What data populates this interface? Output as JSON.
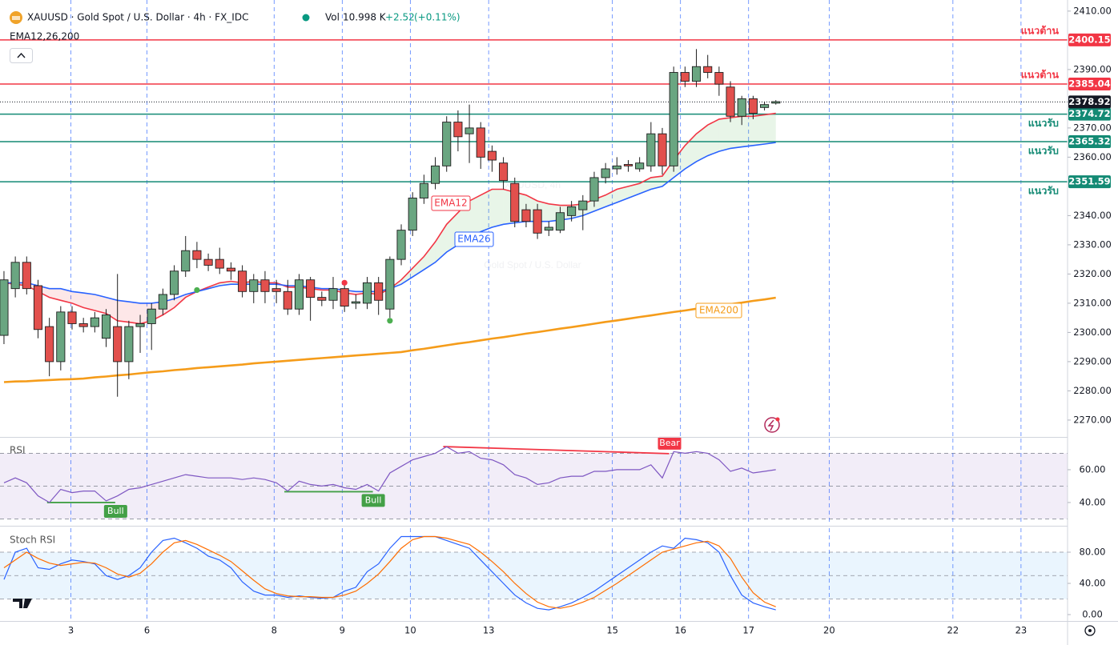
{
  "header": {
    "symbol": "XAUUSD · Gold Spot / U.S. Dollar · 4h · FX_IDC",
    "vol_label": "Vol",
    "vol": "10.998 K",
    "change": "+2.52",
    "change_pct": "(+0.11%)",
    "indicator": "EMA12,26,200"
  },
  "chart_data": [
    {
      "type": "candlestick",
      "watermark": [
        "XAUUSD, 4h",
        "Gold Spot / U.S. Dollar"
      ],
      "colors": {
        "up": "#6aa681",
        "down": "#e2504d"
      },
      "open": [
        2299,
        2315,
        2324,
        2316,
        2302,
        2290,
        2307,
        2303,
        2302,
        2298,
        2302,
        2290,
        2302,
        2303,
        2308,
        2313,
        2321,
        2328,
        2325,
        2325,
        2322,
        2321,
        2314,
        2318,
        2315,
        2314,
        2308,
        2318,
        2312,
        2311,
        2315,
        2310,
        2310,
        2317,
        2308,
        2325,
        2335,
        2346,
        2351,
        2357,
        2372,
        2368,
        2370,
        2362,
        2358,
        2351,
        2342,
        2342,
        2335,
        2335,
        2340,
        2342,
        2345,
        2353,
        2356,
        2357.5,
        2356,
        2357,
        2368,
        2357,
        2389,
        2386,
        2391,
        2389,
        2384,
        2374,
        2380,
        2377,
        2378.5
      ],
      "high": [
        2321,
        2326,
        2326,
        2318,
        2305,
        2309,
        2309,
        2305,
        2307,
        2308,
        2320,
        2304,
        2306,
        2310,
        2315,
        2323,
        2333,
        2331,
        2327,
        2329,
        2324,
        2323,
        2320,
        2321,
        2318,
        2318,
        2320,
        2319,
        2314,
        2319,
        2317,
        2313,
        2319,
        2319,
        2326,
        2337,
        2348,
        2354,
        2360,
        2374,
        2376,
        2378,
        2372,
        2364,
        2360,
        2353,
        2344,
        2344,
        2338,
        2343,
        2345,
        2347,
        2355,
        2358,
        2360,
        2359,
        2360,
        2372,
        2370,
        2391,
        2391,
        2397,
        2395,
        2391,
        2386,
        2381,
        2381,
        2379,
        2379.5
      ],
      "low": [
        2296,
        2312,
        2313,
        2298,
        2285,
        2287,
        2301,
        2300,
        2300,
        2295,
        2278,
        2284,
        2293,
        2294,
        2306,
        2311,
        2319,
        2322,
        2321,
        2320,
        2318,
        2312,
        2310,
        2310,
        2310,
        2306,
        2306,
        2304,
        2309,
        2308,
        2307,
        2308,
        2308,
        2306,
        2305,
        2323,
        2333,
        2344,
        2349,
        2355,
        2362,
        2358,
        2356,
        2355,
        2349,
        2336,
        2336,
        2332,
        2333,
        2334,
        2338,
        2335,
        2343,
        2351,
        2354,
        2355,
        2355,
        2355,
        2354,
        2355,
        2384,
        2384,
        2387,
        2381,
        2372,
        2371,
        2373,
        2376,
        2378
      ],
      "close": [
        2318,
        2324,
        2315,
        2301,
        2290,
        2307,
        2303,
        2302,
        2305,
        2306,
        2290,
        2302,
        2303,
        2308,
        2313,
        2321,
        2328,
        2325,
        2323,
        2322,
        2321,
        2314,
        2318,
        2314,
        2314,
        2308,
        2318,
        2312,
        2311,
        2315,
        2309,
        2310.5,
        2317,
        2311,
        2325,
        2335,
        2346,
        2351,
        2357,
        2372,
        2367,
        2370,
        2360,
        2359,
        2352,
        2338,
        2338,
        2334,
        2336,
        2341,
        2343,
        2345,
        2353,
        2356,
        2357,
        2357,
        2358,
        2368,
        2357,
        2389,
        2386,
        2391,
        2389,
        2385,
        2374,
        2380,
        2375,
        2378,
        2379
      ],
      "series": [
        {
          "name": "EMA12",
          "color": "#f23645",
          "values": [
            2317,
            2316.5,
            2316,
            2314,
            2312,
            2311,
            2310,
            2308.5,
            2307.5,
            2306.5,
            2304,
            2303.5,
            2303,
            2304,
            2306,
            2308.5,
            2312,
            2314,
            2315.5,
            2317,
            2317.5,
            2317,
            2317.5,
            2317,
            2317,
            2315.5,
            2315.5,
            2315,
            2314.5,
            2314.5,
            2313.5,
            2313,
            2313.5,
            2313,
            2315,
            2318,
            2322,
            2326,
            2331,
            2337,
            2341,
            2345,
            2347,
            2349,
            2349,
            2348,
            2347,
            2345,
            2344,
            2343.5,
            2343.5,
            2344,
            2345.5,
            2347,
            2349,
            2350,
            2351,
            2353,
            2353.5,
            2359,
            2364,
            2368,
            2371,
            2373,
            2373.5,
            2374,
            2374,
            2374.5,
            2375
          ]
        },
        {
          "name": "EMA26",
          "color": "#2962ff",
          "values": [
            2317,
            2317,
            2317,
            2316,
            2315,
            2315,
            2314,
            2313.5,
            2313,
            2312,
            2311,
            2310.5,
            2310,
            2310,
            2310.5,
            2311.5,
            2313,
            2314,
            2315,
            2316,
            2316.5,
            2316.5,
            2316.5,
            2316.5,
            2316.5,
            2316,
            2316,
            2315.5,
            2315,
            2315,
            2314.5,
            2314,
            2314,
            2314,
            2315,
            2316.5,
            2319,
            2321.5,
            2324,
            2327.5,
            2330,
            2332.5,
            2334.5,
            2336,
            2337,
            2337.5,
            2338,
            2338,
            2338,
            2338.5,
            2339,
            2340,
            2341.5,
            2343,
            2344.5,
            2346,
            2347.5,
            2349,
            2350,
            2353,
            2356,
            2358.5,
            2360.5,
            2362,
            2363,
            2363.5,
            2364,
            2364.5,
            2365
          ]
        },
        {
          "name": "EMA200",
          "color": "#f59c1a",
          "values": [
            2283,
            2283.2,
            2283.3,
            2283.5,
            2283.7,
            2283.9,
            2284,
            2284.2,
            2284.6,
            2284.9,
            2285.3,
            2285.6,
            2286,
            2286.4,
            2286.7,
            2287.1,
            2287.4,
            2287.8,
            2288.1,
            2288.4,
            2288.7,
            2289,
            2289.4,
            2289.7,
            2290,
            2290.3,
            2290.6,
            2290.9,
            2291.2,
            2291.5,
            2291.8,
            2292.1,
            2292.4,
            2292.7,
            2293,
            2293.3,
            2293.9,
            2294.4,
            2295,
            2295.6,
            2296.2,
            2296.7,
            2297.3,
            2297.9,
            2298.4,
            2299,
            2299.6,
            2300.1,
            2300.7,
            2301.3,
            2301.8,
            2302.4,
            2303,
            2303.6,
            2304.1,
            2304.7,
            2305.3,
            2305.8,
            2306.4,
            2307,
            2307.5,
            2308.1,
            2308.6,
            2309.2,
            2309.7,
            2310.2,
            2310.8,
            2311.3,
            2311.9
          ]
        }
      ],
      "levels": [
        {
          "value": 2400.15,
          "note": "แนวต้าน",
          "color": "#f23645"
        },
        {
          "value": 2385.04,
          "note": "แนวต้าน",
          "color": "#f23645"
        },
        {
          "value": 2374.72,
          "note": "แนวรับ",
          "color": "#138a74"
        },
        {
          "value": 2365.32,
          "note": "แนวรับ",
          "color": "#138a74"
        },
        {
          "value": 2351.59,
          "note": "แนวรับ",
          "color": "#138a74"
        }
      ],
      "last": 2378.92,
      "signals": [
        {
          "x": 17,
          "y": 2314.5,
          "color": "#4caf50"
        },
        {
          "x": 30,
          "y": 2317,
          "color": "#f23645"
        },
        {
          "x": 34,
          "y": 2304,
          "color": "#4caf50"
        }
      ],
      "xlim": [
        -0.35,
        93.7
      ],
      "xticks": [
        {
          "value": 5.9,
          "label": "3"
        },
        {
          "value": 12.6,
          "label": "6"
        },
        {
          "value": 23.8,
          "label": "8"
        },
        {
          "value": 29.8,
          "label": "9"
        },
        {
          "value": 35.8,
          "label": "10"
        },
        {
          "value": 42.7,
          "label": "13"
        },
        {
          "value": 53.6,
          "label": "15"
        },
        {
          "value": 59.6,
          "label": "16"
        },
        {
          "value": 65.6,
          "label": "17"
        },
        {
          "value": 72.7,
          "label": "20"
        },
        {
          "value": 83.6,
          "label": "22"
        },
        {
          "value": 89.6,
          "label": "23"
        }
      ],
      "ylim": [
        2264.5,
        2413.8
      ],
      "yticks": [
        {
          "value": 2270,
          "label": "2270.00"
        },
        {
          "value": 2280,
          "label": "2280.00"
        },
        {
          "value": 2290,
          "label": "2290.00"
        },
        {
          "value": 2300,
          "label": "2300.00"
        },
        {
          "value": 2310,
          "label": "2310.00"
        },
        {
          "value": 2320,
          "label": "2320.00"
        },
        {
          "value": 2330,
          "label": "2330.00"
        },
        {
          "value": 2340,
          "label": "2340.00"
        },
        {
          "value": 2360,
          "label": "2360.00"
        },
        {
          "value": 2370,
          "label": "2370.00"
        },
        {
          "value": 2390,
          "label": "2390.00"
        },
        {
          "value": 2410,
          "label": "2410.00"
        }
      ]
    },
    {
      "type": "line",
      "title": "RSI",
      "series": [
        {
          "color": "#7e57c2",
          "values": [
            52,
            55,
            52,
            44,
            40,
            48,
            46,
            47,
            47,
            41,
            44,
            48,
            49,
            51,
            53,
            55,
            57,
            56,
            55,
            55,
            55,
            54,
            55,
            54,
            52,
            47,
            53,
            51,
            50,
            51,
            49,
            48,
            51,
            47,
            58,
            62,
            66,
            68,
            70,
            74,
            70,
            71,
            67,
            66,
            63,
            57,
            55,
            51,
            52,
            55,
            56,
            56,
            59,
            59,
            60,
            60,
            60,
            63,
            55,
            71,
            70,
            71,
            70,
            66,
            59,
            61,
            58,
            59,
            60
          ]
        }
      ],
      "band": [
        30,
        70
      ],
      "mid": 50,
      "band_color": "#ede7f6",
      "divergences": [
        {
          "label": "Bull",
          "x": [
            3.8,
            9.8
          ],
          "y": [
            40,
            40
          ],
          "color": "#43a047"
        },
        {
          "label": "Bull",
          "x": [
            24.7,
            32.5
          ],
          "y": [
            46.6,
            46.6
          ],
          "color": "#43a047"
        },
        {
          "label": "Bear",
          "x": [
            38.7,
            58.6
          ],
          "y": [
            74.1,
            69.8
          ],
          "color": "#f23645"
        }
      ],
      "ylim": [
        26.8,
        79
      ],
      "yticks": [
        {
          "value": 40,
          "label": "40.00"
        },
        {
          "value": 60,
          "label": "60.00"
        }
      ]
    },
    {
      "type": "line",
      "title": "Stoch RSI",
      "series": [
        {
          "color": "#2962ff",
          "values": [
            45,
            80,
            85,
            60,
            58,
            65,
            70,
            68,
            65,
            50,
            45,
            50,
            60,
            80,
            95,
            98,
            92,
            85,
            75,
            70,
            60,
            42,
            30,
            25,
            25,
            22,
            24,
            22,
            21,
            22,
            30,
            35,
            55,
            65,
            85,
            100,
            100,
            100,
            100,
            95,
            90,
            85,
            70,
            55,
            40,
            25,
            15,
            8,
            6,
            10,
            15,
            22,
            30,
            40,
            50,
            60,
            70,
            80,
            88,
            85,
            98,
            96,
            92,
            80,
            50,
            25,
            15,
            10,
            6
          ]
        },
        {
          "color": "#ff6d00",
          "values": [
            60,
            70,
            80,
            72,
            66,
            63,
            65,
            67,
            66,
            60,
            52,
            48,
            53,
            65,
            80,
            92,
            95,
            90,
            83,
            76,
            68,
            56,
            44,
            33,
            27,
            24,
            23,
            23,
            22,
            22,
            25,
            30,
            40,
            52,
            68,
            85,
            96,
            100,
            100,
            98,
            94,
            90,
            80,
            68,
            55,
            40,
            27,
            16,
            10,
            8,
            11,
            16,
            22,
            31,
            40,
            50,
            60,
            70,
            80,
            84,
            88,
            92,
            94,
            88,
            72,
            48,
            28,
            16,
            10
          ]
        }
      ],
      "band": [
        20,
        80
      ],
      "mid": 50,
      "band_color": "#e3f2fd",
      "ylim": [
        -7.2,
        110.8
      ],
      "yticks": [
        {
          "value": 0,
          "label": "0.00"
        },
        {
          "value": 40,
          "label": "40.00"
        },
        {
          "value": 80,
          "label": "80.00"
        }
      ]
    }
  ]
}
